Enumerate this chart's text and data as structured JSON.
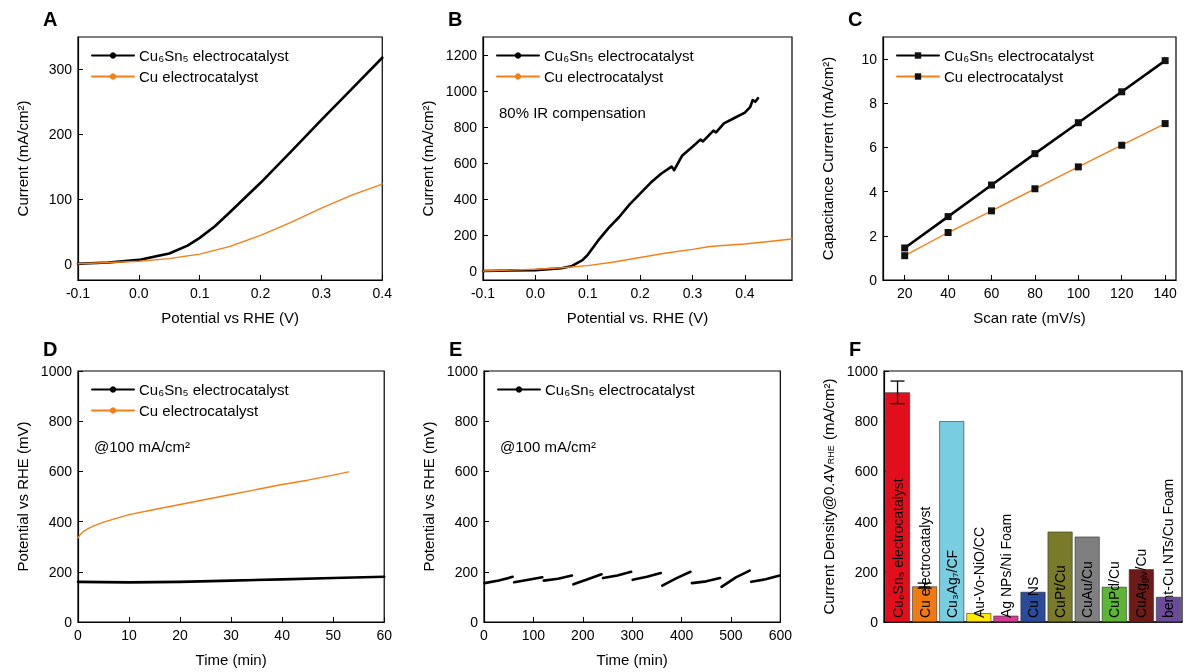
{
  "chart_data": [
    {
      "type": "line",
      "title": "A",
      "xlabel": "Potential vs RHE (V)",
      "ylabel": "Current (mA/cm²)",
      "xlim": [
        -0.1,
        0.4
      ],
      "xticks": [
        -0.1,
        {
          "value": 0,
          "label": "0.0"
        },
        0.1,
        0.2,
        0.3,
        0.4
      ],
      "ylim": [
        -25,
        350
      ],
      "yticks": [
        0,
        100,
        200,
        300
      ],
      "legend": "top left",
      "series": [
        {
          "name": "Cu₆Sn₅ electrocatalyst",
          "color": "#000000",
          "x": [
            -0.1,
            -0.05,
            0,
            0.05,
            0.08,
            0.1,
            0.125,
            0.15,
            0.2,
            0.25,
            0.3,
            0.35,
            0.4
          ],
          "values": [
            0,
            2,
            6,
            16,
            28,
            40,
            58,
            80,
            125,
            173,
            222,
            270,
            318
          ]
        },
        {
          "name": "Cu electrocatalyst",
          "color": "#f57f17",
          "x": [
            -0.1,
            -0.05,
            0,
            0.05,
            0.1,
            0.15,
            0.2,
            0.25,
            0.3,
            0.35,
            0.4
          ],
          "values": [
            0,
            2,
            4,
            8,
            15,
            27,
            44,
            64,
            86,
            106,
            123
          ]
        }
      ]
    },
    {
      "type": "line",
      "title": "B",
      "xlabel": "Potential vs. RHE (V)",
      "ylabel": "Current (mA/cm²)",
      "xlim": [
        -0.1,
        0.49
      ],
      "xticks": [
        -0.1,
        {
          "value": 0,
          "label": "0.0"
        },
        0.1,
        0.2,
        0.3,
        0.4
      ],
      "ylim": [
        -50,
        1300
      ],
      "yticks": [
        0,
        200,
        400,
        600,
        800,
        1000,
        1200
      ],
      "legend": "top left",
      "annotations": [
        "80% IR compensation"
      ],
      "series": [
        {
          "name": "Cu₆Sn₅ electrocatalyst",
          "color": "#000000",
          "x": [
            -0.1,
            0,
            0.05,
            0.07,
            0.09,
            0.1,
            0.12,
            0.14,
            0.16,
            0.18,
            0.2,
            0.22,
            0.24,
            0.26,
            0.265,
            0.28,
            0.3,
            0.315,
            0.32,
            0.34,
            0.345,
            0.36,
            0.38,
            0.4,
            0.41,
            0.415,
            0.42,
            0.425
          ],
          "values": [
            0,
            5,
            15,
            28,
            60,
            90,
            170,
            240,
            300,
            370,
            430,
            490,
            540,
            580,
            560,
            640,
            690,
            730,
            720,
            780,
            770,
            820,
            850,
            880,
            910,
            950,
            940,
            960
          ]
        },
        {
          "name": "Cu electrocatalyst",
          "color": "#f57f17",
          "x": [
            -0.1,
            0,
            0.05,
            0.1,
            0.15,
            0.2,
            0.25,
            0.3,
            0.33,
            0.35,
            0.4,
            0.45,
            0.49
          ],
          "values": [
            0,
            10,
            18,
            30,
            50,
            75,
            100,
            120,
            135,
            140,
            150,
            165,
            178
          ]
        }
      ]
    },
    {
      "type": "line",
      "title": "C",
      "xlabel": "Scan rate (mV/s)",
      "ylabel": "Capacitance Current (mA/cm²)",
      "xlim": [
        10,
        145
      ],
      "xticks": [
        20,
        40,
        60,
        80,
        100,
        120,
        140
      ],
      "ylim": [
        0,
        11
      ],
      "yticks": [
        0,
        2,
        4,
        6,
        8,
        10
      ],
      "legend": "top left",
      "marker": "square",
      "x": [
        20,
        40,
        60,
        80,
        100,
        120,
        140
      ],
      "series": [
        {
          "name": "Cu₆Sn₅ electrocatalyst",
          "color": "#000000",
          "values": [
            1.45,
            2.87,
            4.3,
            5.72,
            7.12,
            8.52,
            9.93
          ]
        },
        {
          "name": "Cu electrocatalyst",
          "color": "#f57f17",
          "values": [
            1.1,
            2.15,
            3.13,
            4.13,
            5.12,
            6.1,
            7.08
          ]
        }
      ]
    },
    {
      "type": "line",
      "title": "D",
      "xlabel": "Time (min)",
      "ylabel": "Potential vs RHE (mV)",
      "xlim": [
        0,
        60
      ],
      "xticks": [
        0,
        10,
        20,
        30,
        40,
        50,
        60
      ],
      "ylim": [
        0,
        1000
      ],
      "yticks": [
        0,
        200,
        400,
        600,
        800,
        1000
      ],
      "legend": "top left",
      "annotations": [
        "@100 mA/cm²"
      ],
      "series": [
        {
          "name": "Cu₆Sn₅ electrocatalyst",
          "color": "#000000",
          "x": [
            0,
            10,
            20,
            30,
            40,
            50,
            60
          ],
          "values": [
            160,
            158,
            160,
            165,
            170,
            175,
            180
          ]
        },
        {
          "name": "Cu electrocatalyst",
          "color": "#f57f17",
          "x": [
            0,
            0.5,
            1,
            2,
            3,
            5,
            7,
            10,
            15,
            20,
            25,
            30,
            35,
            40,
            45,
            50,
            53
          ],
          "values": [
            335,
            350,
            360,
            372,
            382,
            398,
            410,
            428,
            448,
            468,
            488,
            508,
            528,
            548,
            565,
            585,
            598
          ]
        }
      ]
    },
    {
      "type": "line",
      "title": "E",
      "xlabel": "Time (min)",
      "ylabel": "Potential vs RHE (mV)",
      "xlim": [
        0,
        600
      ],
      "xticks": [
        0,
        100,
        200,
        300,
        400,
        500,
        600
      ],
      "ylim": [
        0,
        1000
      ],
      "yticks": [
        0,
        200,
        400,
        600,
        800,
        1000
      ],
      "legend": "top left",
      "annotations": [
        "@100 mA/cm²"
      ],
      "series": [
        {
          "name": "Cu₆Sn₅ electrocatalyst",
          "color": "#000000",
          "x": [
            1,
            30,
            58,
            59,
            61,
            90,
            118,
            119,
            121,
            150,
            178,
            179,
            181,
            210,
            238,
            239,
            241,
            270,
            298,
            299,
            301,
            330,
            358,
            359,
            361,
            390,
            418,
            419,
            421,
            450,
            478,
            479,
            481,
            510,
            538,
            539,
            541,
            570,
            599
          ],
          "values": [
            155,
            165,
            180,
            null,
            158,
            168,
            178,
            null,
            165,
            172,
            185,
            null,
            150,
            170,
            190,
            null,
            175,
            185,
            200,
            null,
            168,
            180,
            195,
            null,
            145,
            175,
            200,
            null,
            155,
            162,
            175,
            null,
            140,
            178,
            205,
            null,
            160,
            170,
            185
          ]
        }
      ]
    },
    {
      "type": "bar",
      "title": "F",
      "ylabel": "Current Density@0.4V$_{RHE}$ (mA/cm²)",
      "ylim": [
        0,
        1000
      ],
      "yticks": [
        0,
        200,
        400,
        600,
        800,
        1000
      ],
      "categories": [
        "Cu₆Sn₅ electrocatalyst",
        "Cu electrocatalyst",
        "Cu₃Ag₇/CF",
        "Au-Vo-NiO/CC",
        "Ag NPs/Ni Foam",
        "Cu NS",
        "CuPt/Cu",
        "CuAu/Cu",
        "CuPd/Cu",
        "CuAg$_{glv}$/Cu",
        "bent-Cu NTs/Cu Foam"
      ],
      "values": [
        915,
        142,
        800,
        35,
        25,
        120,
        360,
        340,
        140,
        210,
        100
      ],
      "colors": [
        "#e30e1c",
        "#f07a10",
        "#78cde0",
        "#ffe800",
        "#d13d98",
        "#2b4a9a",
        "#7a7b2a",
        "#7f7f7f",
        "#5db535",
        "#6e1a17",
        "#6b4b9a"
      ],
      "errors": [
        [
          870,
          960
        ],
        [
          135,
          155
        ],
        null,
        null,
        null,
        null,
        null,
        null,
        null,
        null,
        null
      ]
    }
  ]
}
